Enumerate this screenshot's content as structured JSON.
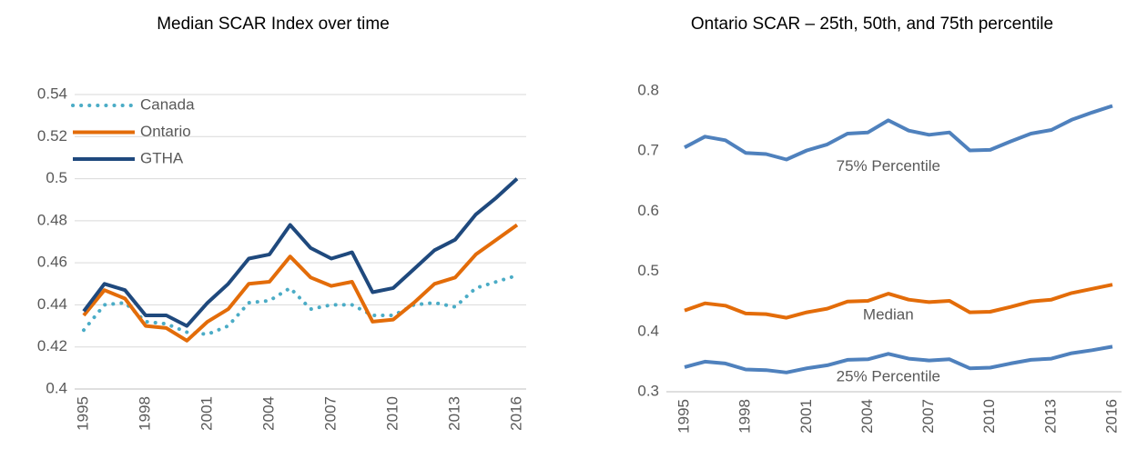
{
  "chart_data": [
    {
      "type": "line",
      "title": "Median SCAR Index over time",
      "x": [
        1995,
        1996,
        1997,
        1998,
        1999,
        2000,
        2001,
        2002,
        2003,
        2004,
        2005,
        2006,
        2007,
        2008,
        2009,
        2010,
        2011,
        2012,
        2013,
        2014,
        2015,
        2016
      ],
      "xticks": [
        1995,
        1998,
        2001,
        2004,
        2007,
        2010,
        2013,
        2016
      ],
      "ylim": [
        0.4,
        0.54
      ],
      "yticks": [
        0.4,
        0.42,
        0.44,
        0.46,
        0.48,
        0.5,
        0.52,
        0.54
      ],
      "grid": true,
      "legend": "top-left",
      "series": [
        {
          "name": "Canada",
          "color": "#4bacc6",
          "style": "dotted",
          "values": [
            0.428,
            0.44,
            0.441,
            0.432,
            0.431,
            0.427,
            0.426,
            0.43,
            0.441,
            0.442,
            0.448,
            0.438,
            0.44,
            0.44,
            0.435,
            0.435,
            0.44,
            0.441,
            0.439,
            0.448,
            0.451,
            0.454
          ]
        },
        {
          "name": "Ontario",
          "color": "#e36c09",
          "style": "solid",
          "values": [
            0.435,
            0.447,
            0.443,
            0.43,
            0.429,
            0.423,
            0.432,
            0.438,
            0.45,
            0.451,
            0.463,
            0.453,
            0.449,
            0.451,
            0.432,
            0.433,
            0.441,
            0.45,
            0.453,
            0.464,
            0.471,
            0.478
          ]
        },
        {
          "name": "GTHA",
          "color": "#1f497d",
          "style": "solid",
          "values": [
            0.437,
            0.45,
            0.447,
            0.435,
            0.435,
            0.43,
            0.441,
            0.45,
            0.462,
            0.464,
            0.478,
            0.467,
            0.462,
            0.465,
            0.446,
            0.448,
            0.457,
            0.466,
            0.471,
            0.483,
            0.491,
            0.5
          ]
        }
      ]
    },
    {
      "type": "line",
      "title": "Ontario SCAR – 25th, 50th, and 75th percentile",
      "x": [
        1995,
        1996,
        1997,
        1998,
        1999,
        2000,
        2001,
        2002,
        2003,
        2004,
        2005,
        2006,
        2007,
        2008,
        2009,
        2010,
        2011,
        2012,
        2013,
        2014,
        2015,
        2016
      ],
      "xticks": [
        1995,
        1998,
        2001,
        2004,
        2007,
        2010,
        2013,
        2016
      ],
      "ylim": [
        0.3,
        0.8
      ],
      "yticks": [
        0.3,
        0.4,
        0.5,
        0.6,
        0.7,
        0.8
      ],
      "grid": false,
      "series": [
        {
          "name": "75% Percentile",
          "color": "#4f81bd",
          "style": "solid",
          "values": [
            0.706,
            0.724,
            0.718,
            0.697,
            0.695,
            0.686,
            0.701,
            0.711,
            0.729,
            0.731,
            0.751,
            0.734,
            0.727,
            0.731,
            0.701,
            0.702,
            0.716,
            0.729,
            0.735,
            0.752,
            0.764,
            0.775
          ]
        },
        {
          "name": "Median",
          "color": "#e36c09",
          "style": "solid",
          "values": [
            0.435,
            0.447,
            0.443,
            0.43,
            0.429,
            0.423,
            0.432,
            0.438,
            0.45,
            0.451,
            0.463,
            0.453,
            0.449,
            0.451,
            0.432,
            0.433,
            0.441,
            0.45,
            0.453,
            0.464,
            0.471,
            0.478
          ]
        },
        {
          "name": "25% Percentile",
          "color": "#4f81bd",
          "style": "solid",
          "values": [
            0.341,
            0.35,
            0.347,
            0.337,
            0.336,
            0.332,
            0.339,
            0.344,
            0.353,
            0.354,
            0.363,
            0.355,
            0.352,
            0.354,
            0.339,
            0.34,
            0.347,
            0.353,
            0.355,
            0.364,
            0.369,
            0.375
          ]
        }
      ]
    }
  ]
}
